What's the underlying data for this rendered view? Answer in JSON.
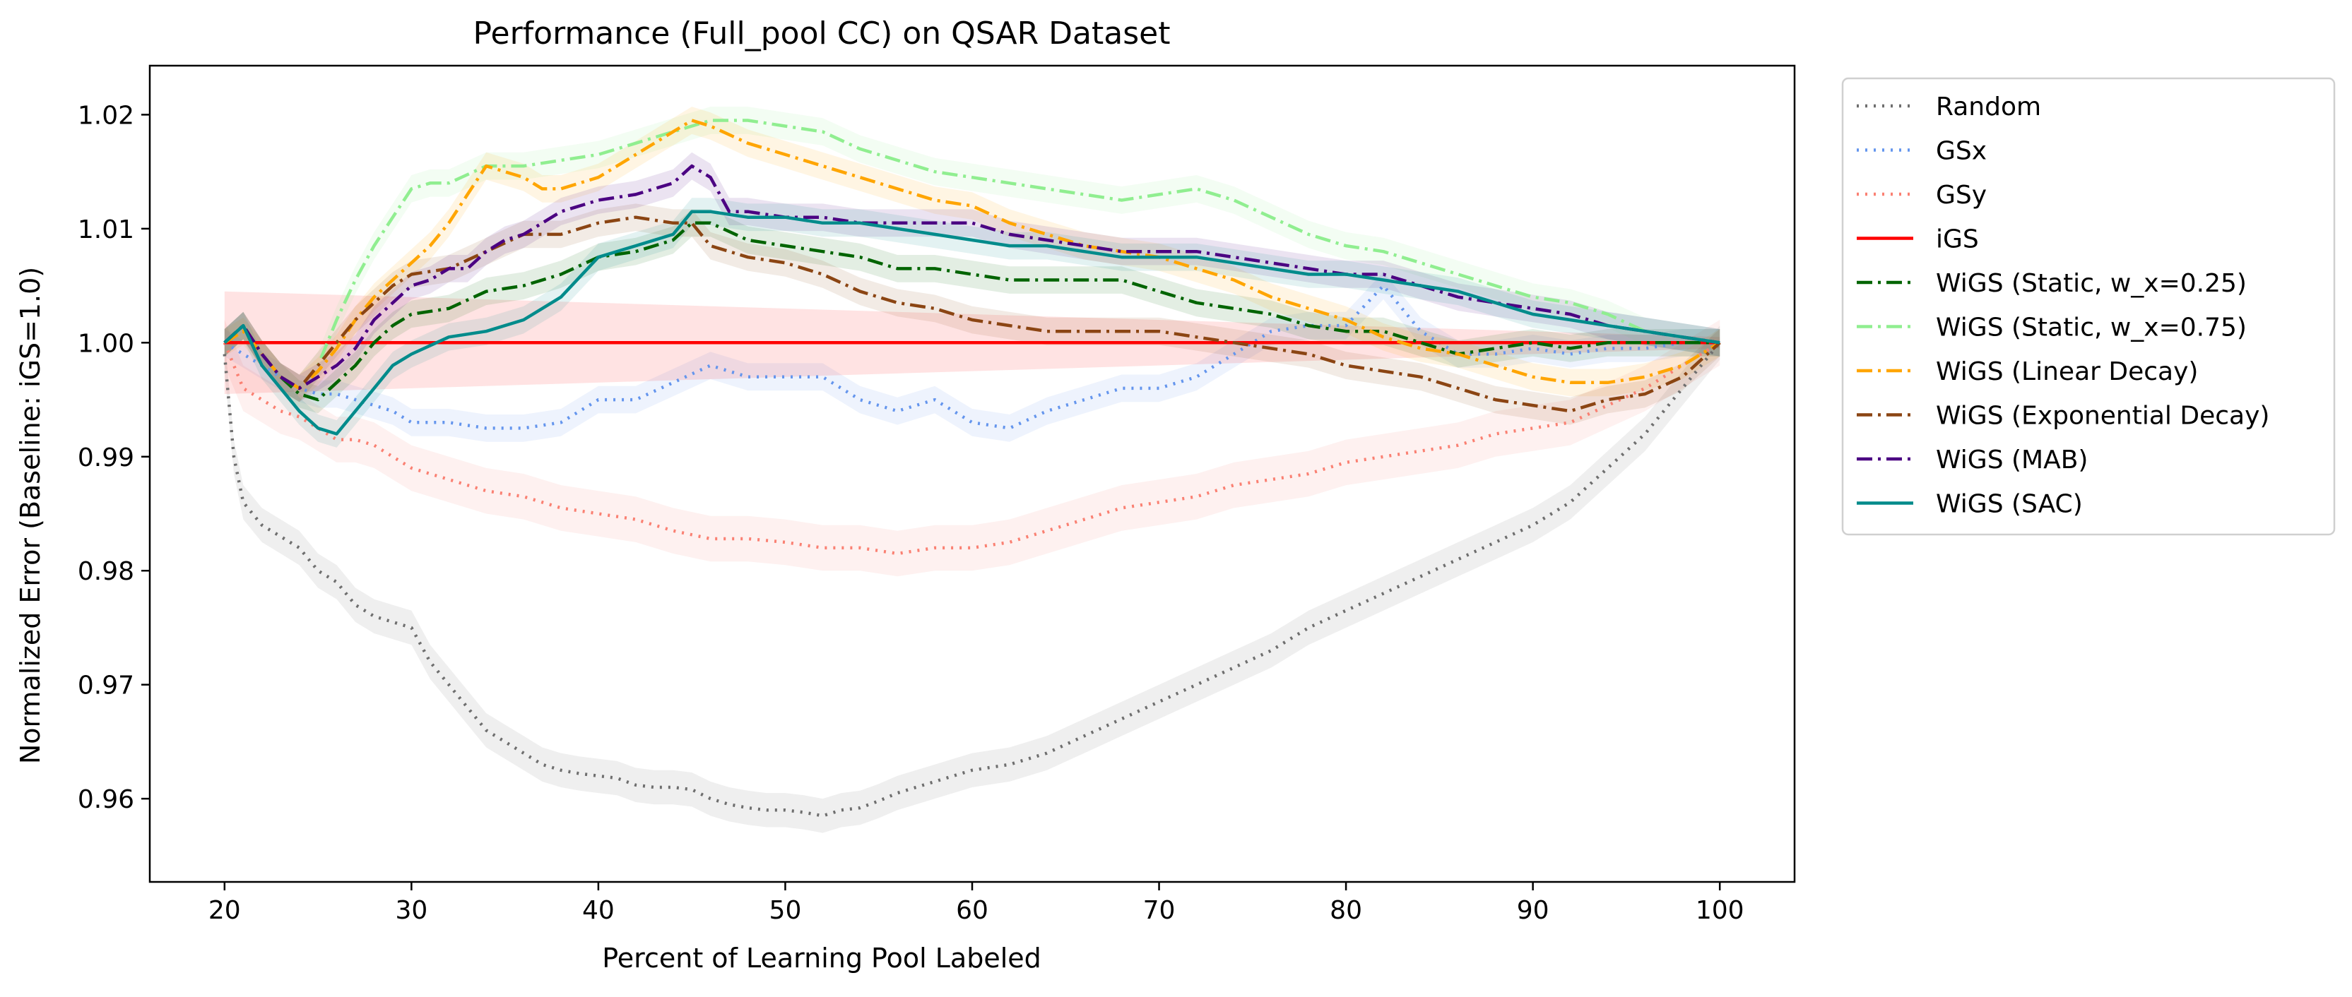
{
  "chart_data": {
    "type": "line",
    "title": "Performance (Full_pool CC) on QSAR Dataset",
    "xlabel": "Percent of Learning Pool Labeled",
    "ylabel": "Normalized Error (Baseline: iGS=1.0)",
    "xlim": [
      16,
      104
    ],
    "ylim": [
      0.9527,
      1.0243
    ],
    "xticks": [
      20,
      30,
      40,
      50,
      60,
      70,
      80,
      90,
      100
    ],
    "yticks": [
      0.96,
      0.97,
      0.98,
      0.99,
      1.0,
      1.01,
      1.02
    ],
    "ytick_labels": [
      "0.96",
      "0.97",
      "0.98",
      "0.99",
      "1.00",
      "1.01",
      "1.02"
    ],
    "grid": false,
    "legend_position": "outside-right-top",
    "series": [
      {
        "name": "Random",
        "color": "#6e6e6e",
        "dash": "dotted",
        "x": [
          20,
          20.5,
          21,
          22,
          23,
          24,
          25,
          26,
          27,
          28,
          29,
          30,
          31,
          32,
          33,
          34,
          35,
          36,
          37,
          38,
          39,
          40,
          41,
          42,
          43,
          44,
          45,
          46,
          47,
          48,
          49,
          50,
          51,
          52,
          53,
          54,
          55,
          56,
          57,
          58,
          59,
          60,
          62,
          64,
          66,
          68,
          70,
          72,
          74,
          76,
          78,
          80,
          82,
          84,
          86,
          88,
          90,
          92,
          94,
          96,
          98,
          100
        ],
        "y": [
          0.999,
          0.99,
          0.986,
          0.984,
          0.983,
          0.982,
          0.98,
          0.979,
          0.977,
          0.976,
          0.9755,
          0.975,
          0.972,
          0.97,
          0.968,
          0.966,
          0.965,
          0.964,
          0.963,
          0.9625,
          0.9622,
          0.962,
          0.9618,
          0.9612,
          0.961,
          0.961,
          0.9608,
          0.96,
          0.9595,
          0.9592,
          0.959,
          0.959,
          0.9588,
          0.9585,
          0.959,
          0.9592,
          0.9598,
          0.9605,
          0.961,
          0.9615,
          0.962,
          0.9625,
          0.963,
          0.964,
          0.9655,
          0.967,
          0.9685,
          0.97,
          0.9715,
          0.973,
          0.975,
          0.9765,
          0.978,
          0.9795,
          0.981,
          0.9825,
          0.984,
          0.986,
          0.989,
          0.992,
          0.996,
          1.0
        ],
        "band": 0.0015
      },
      {
        "name": "GSx",
        "color": "#6495ed",
        "dash": "dotted",
        "x": [
          20,
          21,
          22,
          23,
          24,
          25,
          26,
          27,
          28,
          29,
          30,
          32,
          34,
          36,
          38,
          40,
          42,
          44,
          46,
          48,
          50,
          52,
          54,
          56,
          58,
          60,
          62,
          64,
          66,
          68,
          70,
          72,
          74,
          76,
          78,
          80,
          82,
          84,
          86,
          88,
          90,
          92,
          94,
          96,
          98,
          100
        ],
        "y": [
          1.0,
          0.999,
          0.998,
          0.997,
          0.996,
          0.9955,
          0.9955,
          0.995,
          0.9945,
          0.994,
          0.993,
          0.993,
          0.9925,
          0.9925,
          0.993,
          0.995,
          0.995,
          0.9965,
          0.998,
          0.997,
          0.997,
          0.997,
          0.995,
          0.994,
          0.995,
          0.993,
          0.9925,
          0.994,
          0.995,
          0.996,
          0.996,
          0.997,
          0.999,
          1.001,
          1.0015,
          1.0015,
          1.005,
          1.001,
          0.999,
          0.999,
          0.9995,
          0.999,
          0.9995,
          0.9995,
          1.0,
          1.0
        ],
        "band": 0.0012
      },
      {
        "name": "GSy",
        "color": "#fa8072",
        "dash": "dotted",
        "x": [
          20,
          21,
          22,
          23,
          24,
          25,
          26,
          27,
          28,
          29,
          30,
          32,
          34,
          36,
          38,
          40,
          42,
          44,
          46,
          48,
          50,
          52,
          54,
          56,
          58,
          60,
          62,
          64,
          66,
          68,
          70,
          72,
          74,
          76,
          78,
          80,
          82,
          84,
          86,
          88,
          90,
          92,
          94,
          96,
          98,
          100
        ],
        "y": [
          1.0,
          0.996,
          0.995,
          0.994,
          0.9935,
          0.9925,
          0.9915,
          0.9915,
          0.991,
          0.99,
          0.989,
          0.988,
          0.987,
          0.9865,
          0.9855,
          0.985,
          0.9845,
          0.9835,
          0.9828,
          0.9828,
          0.9825,
          0.982,
          0.982,
          0.9815,
          0.982,
          0.982,
          0.9825,
          0.9835,
          0.9845,
          0.9855,
          0.986,
          0.9865,
          0.9875,
          0.988,
          0.9885,
          0.9895,
          0.99,
          0.9905,
          0.991,
          0.992,
          0.9925,
          0.993,
          0.9945,
          0.996,
          0.998,
          1.0
        ],
        "band": 0.002
      },
      {
        "name": "iGS",
        "color": "#ff0000",
        "dash": "solid",
        "x": [
          20,
          100
        ],
        "y": [
          1.0,
          1.0
        ],
        "band_lower": [
          0.9955,
          0.9995
        ],
        "band_upper": [
          1.0045,
          1.0005
        ]
      },
      {
        "name": "WiGS (Static, w_x=0.25)",
        "color": "#006400",
        "dash": "dashdot",
        "x": [
          20,
          21,
          22,
          23,
          24,
          25,
          26,
          27,
          28,
          29,
          30,
          32,
          34,
          36,
          38,
          40,
          42,
          44,
          45,
          46,
          48,
          50,
          52,
          54,
          56,
          58,
          60,
          62,
          64,
          66,
          68,
          70,
          72,
          74,
          76,
          78,
          80,
          82,
          84,
          86,
          88,
          90,
          92,
          94,
          96,
          98,
          100
        ],
        "y": [
          1.0,
          1.0015,
          0.999,
          0.997,
          0.9955,
          0.995,
          0.9965,
          0.998,
          1.0,
          1.0015,
          1.0025,
          1.003,
          1.0045,
          1.005,
          1.006,
          1.0075,
          1.008,
          1.009,
          1.0105,
          1.0105,
          1.009,
          1.0085,
          1.008,
          1.0075,
          1.0065,
          1.0065,
          1.006,
          1.0055,
          1.0055,
          1.0055,
          1.0055,
          1.0045,
          1.0035,
          1.003,
          1.0025,
          1.0015,
          1.001,
          1.001,
          1.0,
          0.999,
          0.9995,
          1.0,
          0.9995,
          1.0,
          1.0,
          1.0,
          1.0
        ],
        "band": 0.0012
      },
      {
        "name": "WiGS (Static, w_x=0.75)",
        "color": "#90ee90",
        "dash": "dashdot",
        "x": [
          20,
          21,
          22,
          23,
          24,
          25,
          26,
          27,
          28,
          29,
          30,
          31,
          32,
          34,
          36,
          38,
          40,
          42,
          44,
          46,
          48,
          50,
          52,
          54,
          56,
          58,
          60,
          62,
          64,
          66,
          68,
          70,
          72,
          74,
          76,
          78,
          80,
          82,
          84,
          86,
          88,
          90,
          92,
          94,
          96,
          98,
          100
        ],
        "y": [
          1.0,
          1.0015,
          0.999,
          0.997,
          0.996,
          0.998,
          1.002,
          1.0055,
          1.0085,
          1.011,
          1.0135,
          1.014,
          1.014,
          1.0155,
          1.0155,
          1.016,
          1.0165,
          1.0175,
          1.0185,
          1.0195,
          1.0195,
          1.019,
          1.0185,
          1.017,
          1.016,
          1.015,
          1.0145,
          1.014,
          1.0135,
          1.013,
          1.0125,
          1.013,
          1.0135,
          1.0125,
          1.011,
          1.0095,
          1.0085,
          1.008,
          1.007,
          1.006,
          1.005,
          1.004,
          1.0035,
          1.0025,
          1.001,
          1.0005,
          1.0
        ],
        "band": 0.0012
      },
      {
        "name": "WiGS (Linear Decay)",
        "color": "#ffa500",
        "dash": "dashdot",
        "x": [
          20,
          21,
          22,
          23,
          24,
          25,
          26,
          27,
          28,
          29,
          30,
          31,
          32,
          33,
          34,
          35,
          36,
          37,
          38,
          40,
          42,
          44,
          45,
          46,
          48,
          50,
          52,
          54,
          56,
          58,
          60,
          62,
          64,
          66,
          68,
          70,
          72,
          74,
          76,
          78,
          80,
          82,
          84,
          86,
          88,
          90,
          92,
          94,
          96,
          98,
          100
        ],
        "y": [
          1.0,
          1.001,
          0.999,
          0.997,
          0.996,
          0.9975,
          0.9995,
          1.002,
          1.004,
          1.0055,
          1.007,
          1.0085,
          1.0105,
          1.013,
          1.0155,
          1.015,
          1.0145,
          1.0135,
          1.0135,
          1.0145,
          1.0165,
          1.0185,
          1.0195,
          1.019,
          1.0175,
          1.0165,
          1.0155,
          1.0145,
          1.0135,
          1.0125,
          1.012,
          1.0105,
          1.0095,
          1.0085,
          1.008,
          1.0075,
          1.0065,
          1.0055,
          1.004,
          1.003,
          1.002,
          1.0005,
          0.9995,
          0.999,
          0.998,
          0.997,
          0.9965,
          0.9965,
          0.997,
          0.998,
          1.0
        ],
        "band": 0.0012
      },
      {
        "name": "WiGS (Exponential Decay)",
        "color": "#8b4513",
        "dash": "dashdot",
        "x": [
          20,
          21,
          22,
          23,
          24,
          25,
          26,
          27,
          28,
          29,
          30,
          32,
          34,
          36,
          38,
          40,
          42,
          44,
          45,
          46,
          48,
          50,
          52,
          54,
          56,
          58,
          60,
          62,
          64,
          66,
          68,
          70,
          72,
          74,
          76,
          78,
          80,
          82,
          84,
          86,
          88,
          90,
          92,
          94,
          96,
          98,
          100
        ],
        "y": [
          1.0,
          1.0015,
          0.999,
          0.997,
          0.996,
          0.998,
          1.0,
          1.002,
          1.0035,
          1.005,
          1.006,
          1.0065,
          1.008,
          1.0095,
          1.0095,
          1.0105,
          1.011,
          1.0105,
          1.0105,
          1.0085,
          1.0075,
          1.007,
          1.006,
          1.0045,
          1.0035,
          1.003,
          1.002,
          1.0015,
          1.001,
          1.001,
          1.001,
          1.001,
          1.0005,
          1.0,
          0.9995,
          0.999,
          0.998,
          0.9975,
          0.997,
          0.996,
          0.995,
          0.9945,
          0.994,
          0.995,
          0.9955,
          0.997,
          1.0
        ],
        "band": 0.0012
      },
      {
        "name": "WiGS (MAB)",
        "color": "#4b0082",
        "dash": "dashdot",
        "x": [
          20,
          21,
          22,
          23,
          24,
          25,
          26,
          27,
          28,
          29,
          30,
          31,
          32,
          33,
          34,
          35,
          36,
          38,
          40,
          42,
          44,
          45,
          46,
          47,
          48,
          50,
          52,
          54,
          56,
          58,
          60,
          62,
          64,
          66,
          68,
          70,
          72,
          74,
          76,
          78,
          80,
          82,
          84,
          86,
          88,
          90,
          92,
          94,
          96,
          98,
          100
        ],
        "y": [
          1.0,
          1.0015,
          0.999,
          0.997,
          0.996,
          0.997,
          0.998,
          0.9995,
          1.002,
          1.0035,
          1.005,
          1.0055,
          1.0065,
          1.0065,
          1.008,
          1.009,
          1.0095,
          1.0115,
          1.0125,
          1.013,
          1.014,
          1.0155,
          1.0145,
          1.0115,
          1.0115,
          1.011,
          1.011,
          1.0105,
          1.0105,
          1.0105,
          1.0105,
          1.0095,
          1.009,
          1.0085,
          1.008,
          1.008,
          1.008,
          1.0075,
          1.007,
          1.0065,
          1.006,
          1.006,
          1.005,
          1.004,
          1.0035,
          1.003,
          1.0025,
          1.0015,
          1.001,
          1.0005,
          1.0
        ],
        "band": 0.0012
      },
      {
        "name": "WiGS (SAC)",
        "color": "#008b8b",
        "dash": "solid",
        "x": [
          20,
          21,
          22,
          23,
          24,
          25,
          26,
          27,
          28,
          29,
          30,
          32,
          34,
          36,
          38,
          40,
          42,
          44,
          45,
          46,
          48,
          50,
          52,
          54,
          56,
          58,
          60,
          62,
          64,
          66,
          68,
          70,
          72,
          74,
          76,
          78,
          80,
          82,
          84,
          86,
          88,
          90,
          92,
          94,
          96,
          98,
          100
        ],
        "y": [
          1.0,
          1.0015,
          0.998,
          0.996,
          0.994,
          0.9925,
          0.992,
          0.994,
          0.996,
          0.998,
          0.999,
          1.0005,
          1.001,
          1.002,
          1.004,
          1.0075,
          1.0085,
          1.0095,
          1.0115,
          1.0115,
          1.011,
          1.011,
          1.0105,
          1.0105,
          1.01,
          1.0095,
          1.009,
          1.0085,
          1.0085,
          1.008,
          1.0075,
          1.0075,
          1.0075,
          1.007,
          1.0065,
          1.006,
          1.006,
          1.0055,
          1.005,
          1.0045,
          1.0035,
          1.0025,
          1.002,
          1.0015,
          1.001,
          1.0005,
          1.0
        ],
        "band": 0.0012
      }
    ]
  }
}
